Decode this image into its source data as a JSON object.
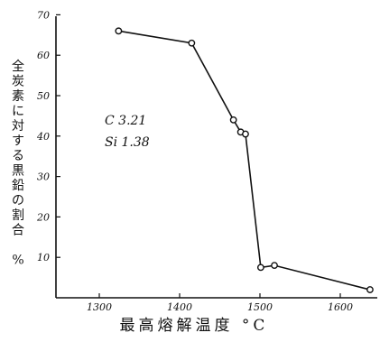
{
  "chart_data": {
    "type": "line",
    "title": "",
    "xlabel": "最高熔解温度 °C",
    "ylabel": "全炭素に対する黒鉛の割合 %",
    "xlim": [
      1225,
      1650
    ],
    "ylim": [
      0,
      70
    ],
    "x_ticks": [
      "1300",
      "1400",
      "1500",
      "1600"
    ],
    "x_tick_values": [
      1300,
      1400,
      1500,
      1600
    ],
    "y_ticks": [
      "10",
      "20",
      "30",
      "40",
      "50",
      "60",
      "70"
    ],
    "y_tick_values": [
      10,
      20,
      30,
      40,
      50,
      60,
      70
    ],
    "grid": false,
    "series": [
      {
        "x": [
          1324,
          1415,
          1467,
          1476,
          1482,
          1501,
          1518,
          1637
        ],
        "y": [
          66,
          63,
          44,
          41,
          40.5,
          7.5,
          8,
          2
        ],
        "marker": "open-circle",
        "color": "#111111"
      }
    ],
    "annotations": [
      {
        "text": "C  3.21"
      },
      {
        "text": "Si  1.38"
      }
    ]
  }
}
